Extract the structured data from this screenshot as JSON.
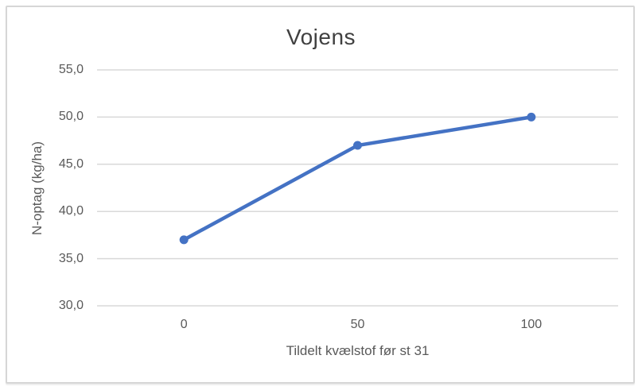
{
  "chart_data": {
    "type": "line",
    "title": "Vojens",
    "xlabel": "Tildelt kvælstof før st 31",
    "ylabel": "N-optag (kg/ha)",
    "categories": [
      "0",
      "50",
      "100"
    ],
    "values": [
      37,
      47,
      50
    ],
    "ylim": [
      30,
      55
    ],
    "y_tick_step": 5,
    "y_ticks": [
      "30,0",
      "35,0",
      "40,0",
      "45,0",
      "50,0",
      "55,0"
    ],
    "grid": true,
    "legend": false,
    "line_color": "#4472C4",
    "marker": "circle",
    "gridline_color": "#d9d9d9",
    "text_color": "#595959",
    "title_color": "#404040",
    "frame_border_color": "#d6d6d6"
  }
}
